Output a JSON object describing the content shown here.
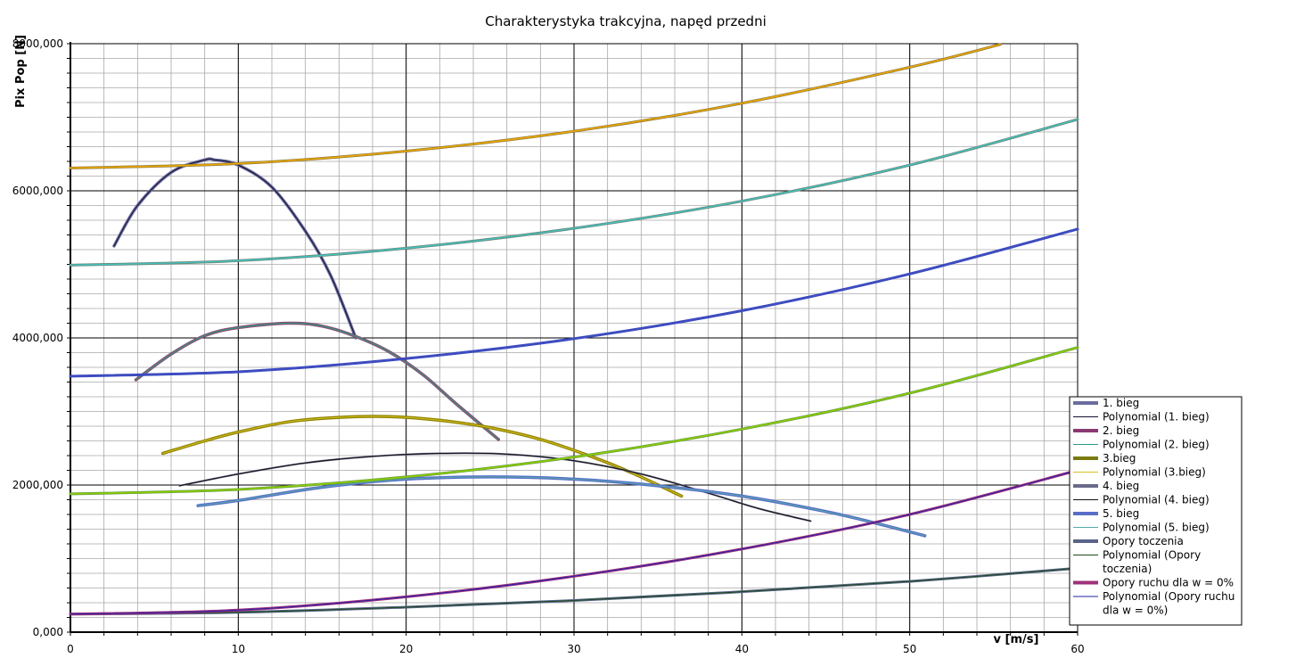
{
  "chart_data": {
    "type": "line",
    "title": "Charakterystyka trakcyjna, napęd przedni",
    "xlabel": "v [m/s]",
    "ylabel": "Pix Pop [N]",
    "xlim": [
      0,
      60
    ],
    "ylim": [
      0,
      8000
    ],
    "x_ticks": [
      0,
      10,
      20,
      30,
      40,
      50,
      60
    ],
    "x_tick_labels": [
      "0",
      "10",
      "20",
      "30",
      "40",
      "50",
      "60"
    ],
    "y_ticks": [
      0,
      2000,
      4000,
      6000,
      8000
    ],
    "y_tick_labels": [
      "0,000",
      "2000,000",
      "4000,000",
      "6000,000",
      "8000,000"
    ],
    "grid": true,
    "legend_position": "right",
    "series": [
      {
        "name": "1. bieg",
        "color": "#6b6b9e",
        "width": 3.5,
        "x": [
          2.6,
          4,
          6,
          8,
          8.6,
          10,
          12,
          14,
          15.5,
          17
        ],
        "y": [
          5250,
          5800,
          6250,
          6420,
          6420,
          6350,
          6050,
          5450,
          4850,
          4000
        ]
      },
      {
        "name": "Polynomial (1. bieg)",
        "color": "#111133",
        "width": 1,
        "x": [
          2.6,
          4,
          6,
          8,
          8.6,
          10,
          12,
          14,
          15.5,
          17
        ],
        "y": [
          5250,
          5800,
          6250,
          6420,
          6420,
          6350,
          6050,
          5450,
          4850,
          4000
        ]
      },
      {
        "name": "2. bieg",
        "color": "#8a5272",
        "width": 3.5,
        "x": [
          3.9,
          6,
          8,
          10,
          13,
          15,
          17,
          19,
          21,
          23,
          25.5
        ],
        "y": [
          3430,
          3780,
          4030,
          4140,
          4200,
          4160,
          4020,
          3810,
          3500,
          3100,
          2620
        ]
      },
      {
        "name": "Polynomial (2. bieg)",
        "color": "#2a9a88",
        "width": 1,
        "x": [
          3.9,
          6,
          8,
          10,
          13,
          15,
          17,
          19,
          21,
          23,
          25.5
        ],
        "y": [
          3430,
          3780,
          4030,
          4140,
          4200,
          4160,
          4020,
          3810,
          3500,
          3100,
          2620
        ]
      },
      {
        "name": "3.bieg",
        "color": "#8c8200",
        "width": 3.5,
        "x": [
          5.5,
          8,
          10,
          13,
          16,
          19,
          22,
          25,
          28,
          31,
          33.5,
          36.4
        ],
        "y": [
          2430,
          2600,
          2720,
          2860,
          2920,
          2930,
          2880,
          2780,
          2620,
          2390,
          2160,
          1850
        ]
      },
      {
        "name": "Polynomial (3.bieg)",
        "color": "#d8c020",
        "width": 1,
        "x": [
          5.5,
          8,
          10,
          13,
          16,
          19,
          22,
          25,
          28,
          31,
          33.5,
          36.4
        ],
        "y": [
          2430,
          2600,
          2720,
          2860,
          2920,
          2930,
          2880,
          2780,
          2620,
          2390,
          2160,
          1850
        ]
      },
      {
        "name": "4. bieg",
        "color": "#6a6a8a",
        "width": 2,
        "x": [
          6.5,
          10,
          14,
          18,
          22,
          26,
          30,
          34,
          38,
          41,
          44.1
        ],
        "y": [
          1990,
          2150,
          2300,
          2390,
          2430,
          2420,
          2330,
          2150,
          1890,
          1680,
          1510
        ]
      },
      {
        "name": "Polynomial (4. bieg)",
        "color": "#101010",
        "width": 1,
        "x": [
          6.5,
          10,
          14,
          18,
          22,
          26,
          30,
          34,
          38,
          41,
          44.1
        ],
        "y": [
          1990,
          2150,
          2300,
          2390,
          2430,
          2420,
          2330,
          2150,
          1890,
          1680,
          1510
        ]
      },
      {
        "name": "5. bieg",
        "color": "#5a6ec8",
        "width": 3.5,
        "x": [
          7.6,
          10,
          15,
          20,
          25,
          30,
          35,
          40,
          45,
          48,
          50.9
        ],
        "y": [
          1720,
          1790,
          1970,
          2080,
          2110,
          2080,
          1990,
          1850,
          1640,
          1480,
          1310
        ]
      },
      {
        "name": "Polynomial (5. bieg)",
        "color": "#55aaaa",
        "width": 1,
        "x": [
          7.6,
          10,
          15,
          20,
          25,
          30,
          35,
          40,
          45,
          48,
          50.9
        ],
        "y": [
          1720,
          1790,
          1970,
          2080,
          2110,
          2080,
          1990,
          1850,
          1640,
          1480,
          1310
        ]
      },
      {
        "name": "Opory toczenia",
        "color": "#5a6488",
        "width": 3,
        "x": [
          0,
          10,
          20,
          30,
          40,
          50,
          60
        ],
        "y": [
          245,
          270,
          340,
          430,
          550,
          690,
          870
        ]
      },
      {
        "name": "Polynomial (Opory toczenia)",
        "color": "#1a4a1a",
        "width": 1,
        "x": [
          0,
          10,
          20,
          30,
          40,
          50,
          60
        ],
        "y": [
          245,
          270,
          340,
          430,
          550,
          690,
          870
        ]
      },
      {
        "name": "Opory ruchu dla w = 0%",
        "color": "#a0307a",
        "width": 3,
        "x": [
          0,
          10,
          20,
          30,
          40,
          50,
          60
        ],
        "y": [
          245,
          300,
          480,
          760,
          1130,
          1600,
          2200
        ]
      },
      {
        "name": "Polynomial (Opory ruchu dla w = 0%)",
        "color": "#2222aa",
        "width": 1,
        "x": [
          0,
          10,
          20,
          30,
          40,
          50,
          60
        ],
        "y": [
          245,
          300,
          480,
          760,
          1130,
          1600,
          2200
        ]
      },
      {
        "color": "#3e4cc0",
        "width": 3,
        "x": [
          0,
          10,
          20,
          30,
          40,
          50,
          60
        ],
        "y": [
          3480,
          3540,
          3720,
          3990,
          4370,
          4870,
          5480
        ]
      },
      {
        "color": "#6a8a7a",
        "width": 3,
        "x": [
          0,
          10,
          20,
          30,
          40,
          50,
          60
        ],
        "y": [
          4990,
          5050,
          5220,
          5490,
          5860,
          6350,
          6970
        ]
      },
      {
        "color": "#3cc8c8",
        "width": 1.2,
        "x": [
          0,
          10,
          20,
          30,
          40,
          50,
          60
        ],
        "y": [
          4990,
          5050,
          5220,
          5490,
          5860,
          6350,
          6970
        ]
      },
      {
        "color": "#8c7a3a",
        "width": 3,
        "x": [
          0,
          10,
          20,
          30,
          40,
          50,
          55.4
        ],
        "y": [
          6310,
          6370,
          6540,
          6810,
          7190,
          7680,
          7990
        ]
      },
      {
        "color": "#f0a800",
        "width": 1.5,
        "x": [
          0,
          10,
          20,
          30,
          40,
          50,
          55.4
        ],
        "y": [
          6310,
          6370,
          6540,
          6810,
          7190,
          7680,
          7990
        ]
      },
      {
        "color": "#6a9a40",
        "width": 3,
        "x": [
          0,
          10,
          20,
          30,
          40,
          50,
          60
        ],
        "y": [
          1880,
          1940,
          2110,
          2380,
          2760,
          3250,
          3870
        ]
      },
      {
        "color": "#8ad000",
        "width": 1.5,
        "x": [
          0,
          10,
          20,
          30,
          40,
          50,
          60
        ],
        "y": [
          1880,
          1940,
          2110,
          2380,
          2760,
          3250,
          3870
        ]
      }
    ],
    "legend_entries": [
      {
        "label": "1. bieg",
        "color": "#6b6b9e",
        "width": 4
      },
      {
        "label": "Polynomial (1. bieg)",
        "color": "#111133",
        "width": 1
      },
      {
        "label": "2. bieg",
        "color": "#8a3a72",
        "width": 4
      },
      {
        "label": "Polynomial (2. bieg)",
        "color": "#2a9a88",
        "width": 1
      },
      {
        "label": "3.bieg",
        "color": "#7a7a10",
        "width": 4
      },
      {
        "label": "Polynomial (3.bieg)",
        "color": "#d8c020",
        "width": 1
      },
      {
        "label": "4. bieg",
        "color": "#6a6a8a",
        "width": 4
      },
      {
        "label": "Polynomial (4. bieg)",
        "color": "#101010",
        "width": 1
      },
      {
        "label": "5. bieg",
        "color": "#5a6ec8",
        "width": 4
      },
      {
        "label": "Polynomial (5. bieg)",
        "color": "#55aaaa",
        "width": 1
      },
      {
        "label": "Opory toczenia",
        "color": "#5a6488",
        "width": 4
      },
      {
        "label": "Polynomial (Opory",
        "label2": "toczenia)",
        "color": "#1a4a1a",
        "width": 1
      },
      {
        "label": "Opory ruchu dla w = 0%",
        "color": "#a0307a",
        "width": 4
      },
      {
        "label": "Polynomial (Opory ruchu",
        "label2": "dla w = 0%)",
        "color": "#2222aa",
        "width": 1
      }
    ]
  }
}
